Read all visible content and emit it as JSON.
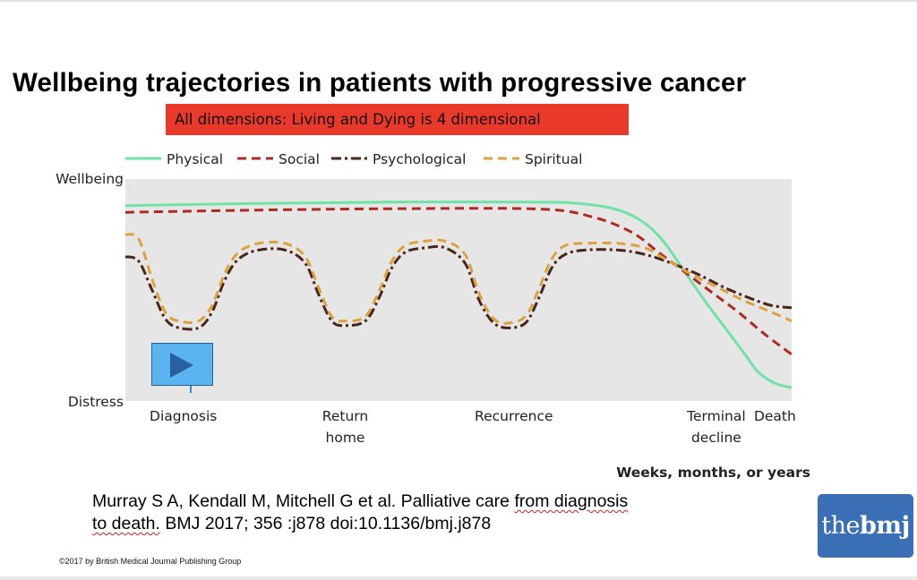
{
  "slide": {
    "title": "Wellbeing trajectories in patients with progressive cancer",
    "banner": "All dimensions:  Living and Dying is 4 dimensional",
    "citation_line1_pre": "Murray S A, Kendall M, Mitchell G et al. Palliative care ",
    "citation_line1_underlined": "from diagnosis",
    "citation_line2_underlined": "to death.",
    "citation_line2_post": " BMJ 2017; 356 :j878 doi:10.1136/bmj.j878",
    "copyright": "©2017 by British Medical Journal Publishing Group",
    "logo_light": "the",
    "logo_bold": "bmj",
    "play_icon": "play-icon"
  },
  "colors": {
    "physical": "#6fe3a6",
    "social": "#b02a24",
    "psychological": "#4a2419",
    "spiritual": "#dca33c",
    "plot_bg": "#e6e6e6",
    "banner": "#e8392a",
    "logo": "#3a6fb5"
  },
  "chart_data": {
    "type": "line",
    "title": "Wellbeing trajectories in patients with progressive cancer",
    "ylabel_top": "Wellbeing",
    "ylabel_bottom": "Distress",
    "xlabel": "Weeks, months, or years",
    "xlim": [
      0,
      100
    ],
    "ylim": [
      0,
      100
    ],
    "grid": false,
    "legend_position": "top",
    "x_ticks": [
      {
        "x": 8.7,
        "lines": [
          "Diagnosis"
        ]
      },
      {
        "x": 33,
        "lines": [
          "Return",
          "home"
        ]
      },
      {
        "x": 58.3,
        "lines": [
          "Recurrence"
        ]
      },
      {
        "x": 88.7,
        "lines": [
          "Terminal",
          "decline"
        ]
      },
      {
        "x": 97.5,
        "lines": [
          "Death"
        ]
      }
    ],
    "series": [
      {
        "name": "Physical",
        "style": "solid",
        "color_key": "physical",
        "points": [
          [
            0,
            88
          ],
          [
            20,
            89
          ],
          [
            40,
            89.6
          ],
          [
            60,
            89.6
          ],
          [
            68,
            89
          ],
          [
            74,
            86
          ],
          [
            78,
            80
          ],
          [
            81,
            71
          ],
          [
            84,
            58
          ],
          [
            87,
            45
          ],
          [
            90,
            33
          ],
          [
            93,
            21
          ],
          [
            95,
            13
          ],
          [
            97.5,
            8
          ],
          [
            100,
            6
          ]
        ]
      },
      {
        "name": "Social",
        "style": "dashed",
        "color_key": "social",
        "points": [
          [
            0,
            85
          ],
          [
            20,
            86
          ],
          [
            40,
            86.6
          ],
          [
            62,
            86.5
          ],
          [
            70,
            83
          ],
          [
            76,
            76
          ],
          [
            80,
            67
          ],
          [
            84,
            58
          ],
          [
            88,
            49
          ],
          [
            92,
            40
          ],
          [
            96,
            30
          ],
          [
            100,
            21
          ]
        ]
      },
      {
        "name": "Psychological",
        "style": "dashdot",
        "color_key": "psychological",
        "points": [
          [
            0,
            65
          ],
          [
            2,
            63
          ],
          [
            4,
            50
          ],
          [
            6,
            37
          ],
          [
            8,
            33
          ],
          [
            11,
            33
          ],
          [
            13,
            40
          ],
          [
            15,
            55
          ],
          [
            17,
            64
          ],
          [
            20,
            68
          ],
          [
            24,
            68
          ],
          [
            27,
            62
          ],
          [
            29,
            48
          ],
          [
            31,
            36
          ],
          [
            33,
            34
          ],
          [
            36,
            36
          ],
          [
            38,
            46
          ],
          [
            40,
            60
          ],
          [
            42,
            67
          ],
          [
            45,
            69
          ],
          [
            48,
            69
          ],
          [
            51,
            62
          ],
          [
            53,
            46
          ],
          [
            55,
            36
          ],
          [
            57,
            33
          ],
          [
            60,
            35
          ],
          [
            62,
            46
          ],
          [
            64,
            60
          ],
          [
            66,
            66
          ],
          [
            69,
            68
          ],
          [
            74,
            68
          ],
          [
            78,
            66
          ],
          [
            82,
            62
          ],
          [
            86,
            57
          ],
          [
            90,
            51
          ],
          [
            94,
            46
          ],
          [
            97,
            43
          ],
          [
            100,
            42
          ]
        ]
      },
      {
        "name": "Spiritual",
        "style": "dashed",
        "color_key": "spiritual",
        "points": [
          [
            0,
            75
          ],
          [
            2,
            73
          ],
          [
            4,
            55
          ],
          [
            6,
            40
          ],
          [
            8,
            36
          ],
          [
            11,
            36
          ],
          [
            13,
            43
          ],
          [
            15,
            58
          ],
          [
            17,
            67
          ],
          [
            20,
            71
          ],
          [
            24,
            71
          ],
          [
            27,
            65
          ],
          [
            29,
            51
          ],
          [
            31,
            38
          ],
          [
            33,
            36
          ],
          [
            36,
            38
          ],
          [
            38,
            49
          ],
          [
            40,
            63
          ],
          [
            42,
            70
          ],
          [
            45,
            72
          ],
          [
            48,
            72
          ],
          [
            51,
            66
          ],
          [
            53,
            49
          ],
          [
            55,
            38
          ],
          [
            57,
            35
          ],
          [
            60,
            38
          ],
          [
            62,
            50
          ],
          [
            64,
            64
          ],
          [
            66,
            70
          ],
          [
            69,
            71
          ],
          [
            74,
            71
          ],
          [
            78,
            69
          ],
          [
            81,
            64
          ],
          [
            85,
            57
          ],
          [
            89,
            51
          ],
          [
            93,
            45
          ],
          [
            97,
            40
          ],
          [
            100,
            36
          ]
        ]
      }
    ]
  }
}
